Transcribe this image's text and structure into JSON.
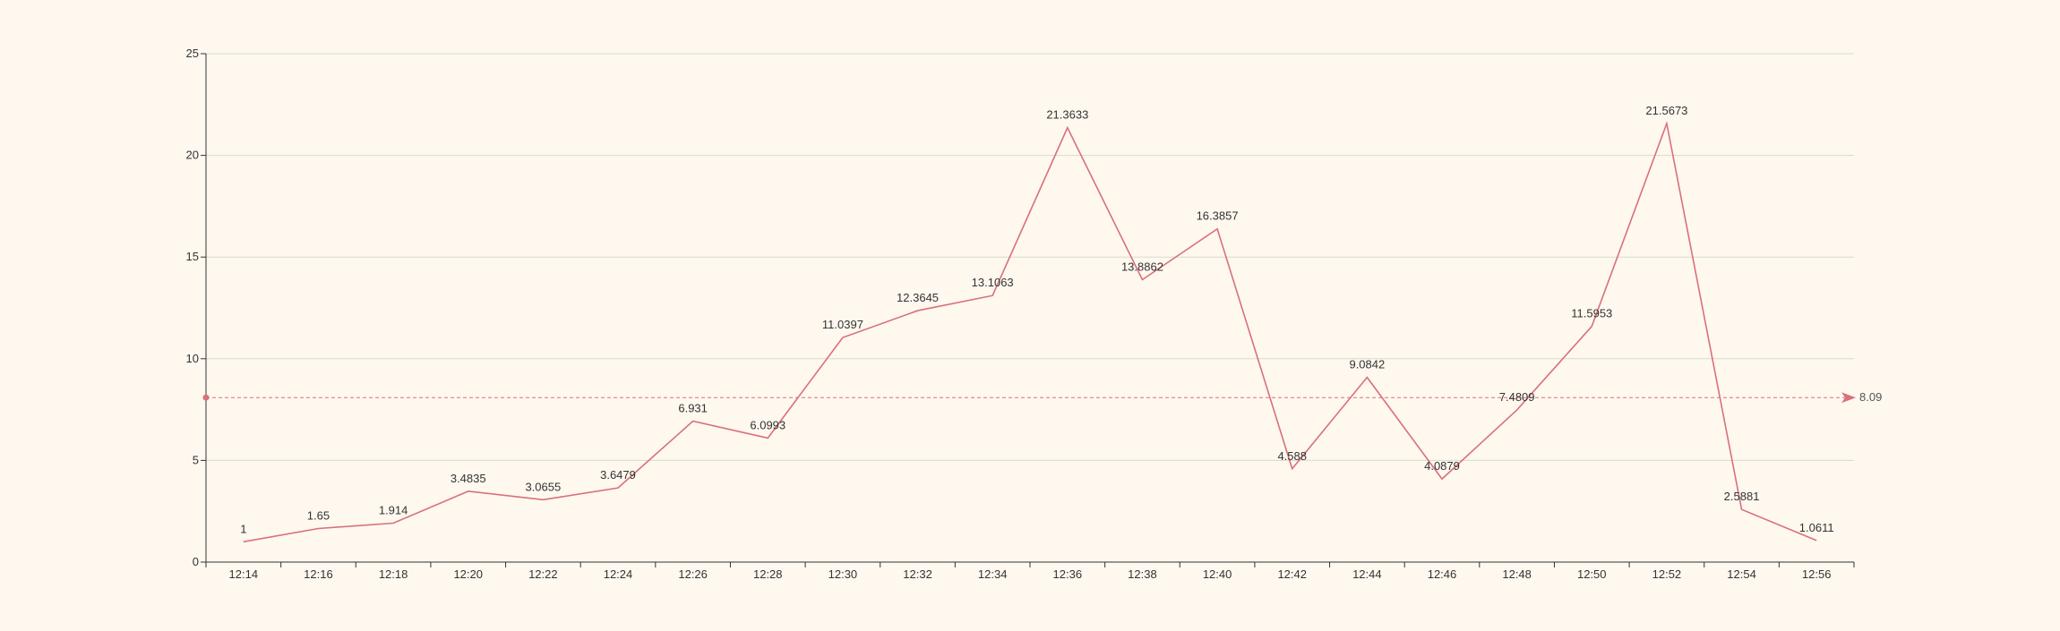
{
  "chart_data": {
    "type": "line",
    "title": "",
    "xlabel": "",
    "ylabel": "",
    "ylim": [
      0,
      25
    ],
    "yticks": [
      0,
      5,
      10,
      15,
      20,
      25
    ],
    "grid": "horizontal",
    "legend": "none",
    "categories": [
      "12:14",
      "12:16",
      "12:18",
      "12:20",
      "12:22",
      "12:24",
      "12:26",
      "12:28",
      "12:30",
      "12:32",
      "12:34",
      "12:36",
      "12:38",
      "12:40",
      "12:42",
      "12:44",
      "12:46",
      "12:48",
      "12:50",
      "12:52",
      "12:54",
      "12:56"
    ],
    "series": [
      {
        "values": [
          1,
          1.65,
          1.914,
          3.4835,
          3.0655,
          3.6479,
          6.931,
          6.0993,
          11.0397,
          12.3645,
          13.1063,
          21.3633,
          13.8862,
          16.3857,
          4.588,
          9.0842,
          4.0879,
          7.4809,
          11.5953,
          21.5673,
          2.5881,
          1.0611
        ],
        "labels": [
          "1",
          "1.65",
          "1.914",
          "3.4835",
          "3.0655",
          "3.6479",
          "6.931",
          "6.0993",
          "11.0397",
          "12.3645",
          "13.1063",
          "21.3633",
          "13.8862",
          "16.3857",
          "4.588",
          "9.0842",
          "4.0879",
          "7.4809",
          "11.5953",
          "21.5673",
          "2.5881",
          "1.0611"
        ]
      }
    ],
    "mark_line": {
      "type": "average",
      "value": 8.09,
      "label": "8.09"
    },
    "colors": {
      "line": "#d9707a",
      "axis": "#333333",
      "grid": "#d6dccd",
      "background": "#fef8ef"
    }
  }
}
